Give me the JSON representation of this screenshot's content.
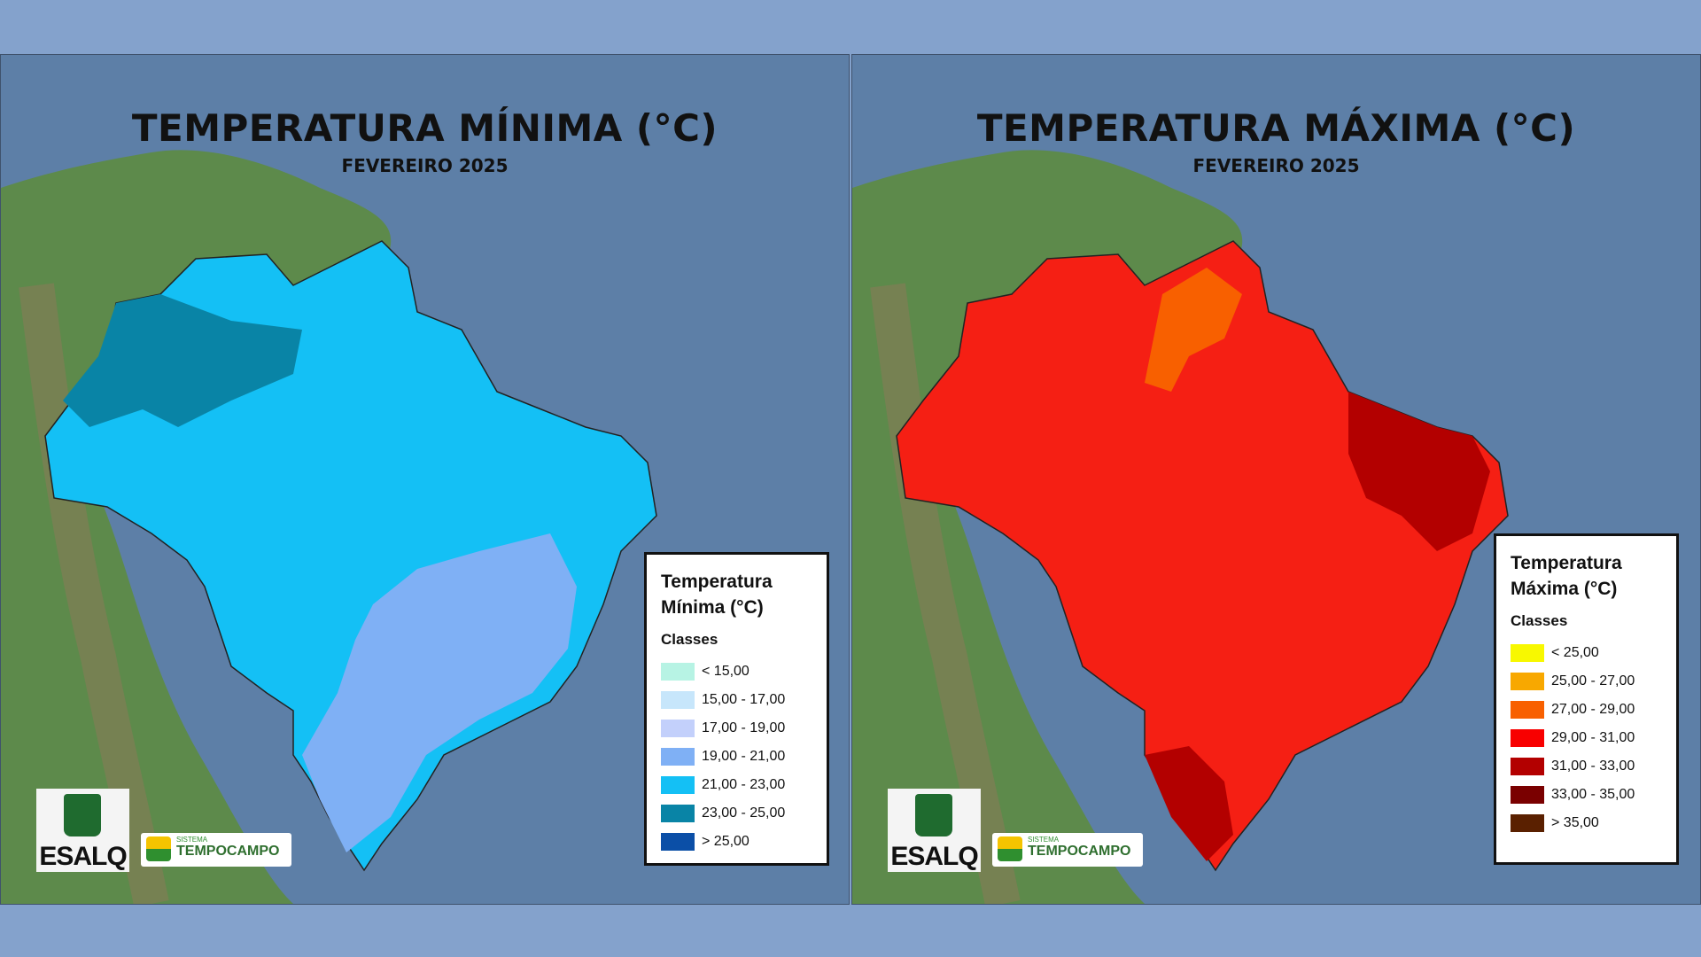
{
  "panels": [
    {
      "title": "TEMPERATURA MÍNIMA (°C)",
      "subtitle": "FEVEREIRO 2025",
      "legend": {
        "title_line1": "Temperatura",
        "title_line2": "Mínima (°C)",
        "classes_label": "Classes",
        "items": [
          {
            "label": "< 15,00",
            "color": "#b7f3e4"
          },
          {
            "label": "15,00 - 17,00",
            "color": "#c7e6fb"
          },
          {
            "label": "17,00 - 19,00",
            "color": "#c3d0fb"
          },
          {
            "label": "19,00 - 21,00",
            "color": "#7fb0f5"
          },
          {
            "label": "21,00 - 23,00",
            "color": "#14c0f5"
          },
          {
            "label": "23,00 - 25,00",
            "color": "#0984a6"
          },
          {
            "label": "> 25,00",
            "color": "#0b4fa7"
          }
        ]
      },
      "map_color": "#14c0f5",
      "accent_color": "#0984a6",
      "secondary_color": "#7fb0f5"
    },
    {
      "title": "TEMPERATURA MÁXIMA (°C)",
      "subtitle": "FEVEREIRO 2025",
      "legend": {
        "title_line1": "Temperatura",
        "title_line2": "Máxima (°C)",
        "classes_label": "Classes",
        "items": [
          {
            "label": "< 25,00",
            "color": "#f8f800"
          },
          {
            "label": "25,00 - 27,00",
            "color": "#f8a800"
          },
          {
            "label": "27,00 - 29,00",
            "color": "#f86000"
          },
          {
            "label": "29,00 - 31,00",
            "color": "#f80000"
          },
          {
            "label": "31,00 - 33,00",
            "color": "#b30000"
          },
          {
            "label": "33,00 - 35,00",
            "color": "#7a0000"
          },
          {
            "label": "> 35,00",
            "color": "#5a2000"
          }
        ]
      },
      "map_color": "#f51f14",
      "accent_color": "#b30000",
      "secondary_color": "#f86000"
    }
  ],
  "logos": {
    "esalq": "ESALQ",
    "tempocampo_small": "SISTEMA",
    "tempocampo": "TEMPOCAMPO"
  }
}
